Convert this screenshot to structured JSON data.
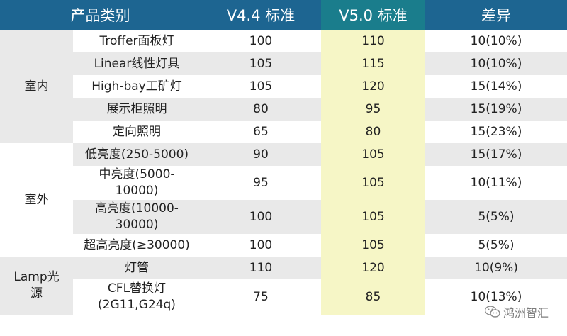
{
  "headers": [
    "产品类别",
    "V4.4 标准",
    "V5.0 标准",
    "差异"
  ],
  "groups": [
    {
      "category": "室内",
      "rows": [
        {
          "product": "Troffer面板灯",
          "v44": "100",
          "v50": "110",
          "diff": "10(10%)"
        },
        {
          "product": "Linear线性灯具",
          "v44": "105",
          "v50": "115",
          "diff": "10(10%)"
        },
        {
          "product": "High-bay工矿灯",
          "v44": "105",
          "v50": "120",
          "diff": "15(14%)"
        },
        {
          "product": "展示柜照明",
          "v44": "80",
          "v50": "95",
          "diff": "15(19%)"
        },
        {
          "product": "定向照明",
          "v44": "65",
          "v50": "80",
          "diff": "15(23%)"
        }
      ]
    },
    {
      "category": "室外",
      "rows": [
        {
          "product": "低亮度(250-5000)",
          "v44": "90",
          "v50": "105",
          "diff": "15(17%)"
        },
        {
          "product": "中亮度(5000-\n10000)",
          "v44": "95",
          "v50": "105",
          "diff": "10(11%)"
        },
        {
          "product": "高亮度(10000-\n30000)",
          "v44": "100",
          "v50": "105",
          "diff": "5(5%)"
        },
        {
          "product": "超高亮度(≥30000)",
          "v44": "100",
          "v50": "105",
          "diff": "5(5%)"
        }
      ]
    },
    {
      "category": "Lamp光\n源",
      "rows": [
        {
          "product": "灯管",
          "v44": "110",
          "v50": "120",
          "diff": "10(9%)"
        },
        {
          "product": "CFL替换灯\n(2G11,G24q)",
          "v44": "75",
          "v50": "85",
          "diff": "10(13%)"
        }
      ]
    }
  ],
  "watermark": {
    "text": "鸿洲智汇",
    "icon": "wechat-icon"
  }
}
